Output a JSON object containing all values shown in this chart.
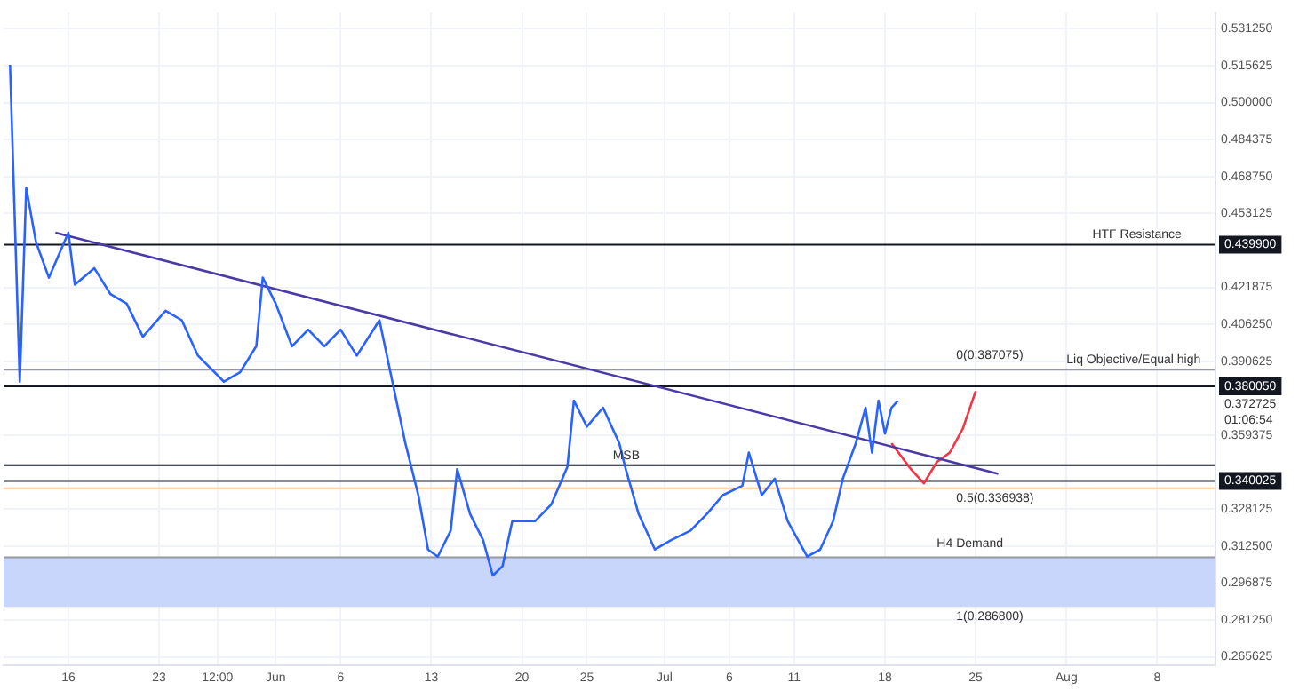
{
  "chart_data": {
    "type": "line",
    "grid": true,
    "legend": false,
    "xlim": [
      "--05-11",
      "--08-12T12:00"
    ],
    "xticks": [
      {
        "value": "--05-16",
        "label": "16"
      },
      {
        "value": "--05-23",
        "label": "23"
      },
      {
        "value": "--05-27T12:00",
        "label": "12:00"
      },
      {
        "value": "--06-01",
        "label": "Jun"
      },
      {
        "value": "--06-06",
        "label": "6"
      },
      {
        "value": "--06-13",
        "label": "13"
      },
      {
        "value": "--06-20",
        "label": "20"
      },
      {
        "value": "--06-25",
        "label": "25"
      },
      {
        "value": "--07-01",
        "label": "Jul"
      },
      {
        "value": "--07-06",
        "label": "6"
      },
      {
        "value": "--07-11",
        "label": "11"
      },
      {
        "value": "--07-18",
        "label": "18"
      },
      {
        "value": "--07-25",
        "label": "25"
      },
      {
        "value": "--08-01",
        "label": "Aug"
      },
      {
        "value": "--08-08",
        "label": "8"
      }
    ],
    "ylim": [
      0.262,
      0.538
    ],
    "yticks": [
      {
        "value": 0.265625,
        "label": "0.265625"
      },
      {
        "value": 0.28125,
        "label": "0.281250"
      },
      {
        "value": 0.296875,
        "label": "0.296875"
      },
      {
        "value": 0.3125,
        "label": "0.312500"
      },
      {
        "value": 0.328125,
        "label": "0.328125"
      },
      {
        "value": 0.359375,
        "label": "0.359375"
      },
      {
        "value": 0.390625,
        "label": "0.390625"
      },
      {
        "value": 0.40625,
        "label": "0.406250"
      },
      {
        "value": 0.421875,
        "label": "0.421875"
      },
      {
        "value": 0.453125,
        "label": "0.453125"
      },
      {
        "value": 0.46875,
        "label": "0.468750"
      },
      {
        "value": 0.484375,
        "label": "0.484375"
      },
      {
        "value": 0.5,
        "label": "0.500000"
      },
      {
        "value": 0.515625,
        "label": "0.515625"
      },
      {
        "value": 0.53125,
        "label": "0.531250"
      }
    ],
    "series": [
      {
        "color": "#2962ff",
        "x": [
          "--05-11T12:00",
          "--05-12T06:00",
          "--05-12T18:00",
          "--05-13T12:00",
          "--05-14T12:00",
          "--05-16",
          "--05-16T12:00",
          "--05-18",
          "--05-19T06:00",
          "--05-20T12:00",
          "--05-21T18:00",
          "--05-23T12:00",
          "--05-24T18:00",
          "--05-26",
          "--05-28",
          "--05-29T06:00",
          "--05-30T12:00",
          "--05-31",
          "--06-01",
          "--06-02T06:00",
          "--06-03T12:00",
          "--06-04T18:00",
          "--06-06",
          "--06-07T06:00",
          "--06-09",
          "--06-10",
          "--06-11",
          "--06-12",
          "--06-12T18:00",
          "--06-13T12:00",
          "--06-14T12:00",
          "--06-15",
          "--06-16",
          "--06-17",
          "--06-17T18:00",
          "--06-18T12:00",
          "--06-19T06:00",
          "--06-21",
          "--06-22T06:00",
          "--06-23T12:00",
          "--06-24",
          "--06-25",
          "--06-26T06:00",
          "--06-27T12:00",
          "--06-28",
          "--06-29",
          "--06-30T06:00",
          "--07-01T12:00",
          "--07-03",
          "--07-04T06:00",
          "--07-05T12:00",
          "--07-07",
          "--07-07T12:00",
          "--07-08T12:00",
          "--07-09T12:00",
          "--07-10T12:00",
          "--07-12",
          "--07-13",
          "--07-14",
          "--07-14T18:00",
          "--07-15T18:00",
          "--07-16T12:00",
          "--07-17",
          "--07-17T12:00",
          "--07-18",
          "--07-18T12:00",
          "--07-19"
        ],
        "values": [
          0.516,
          0.382,
          0.464,
          0.441,
          0.426,
          0.445,
          0.423,
          0.43,
          0.419,
          0.415,
          0.401,
          0.412,
          0.408,
          0.393,
          0.382,
          0.386,
          0.397,
          0.426,
          0.415,
          0.397,
          0.404,
          0.397,
          0.404,
          0.393,
          0.408,
          0.382,
          0.356,
          0.334,
          0.311,
          0.308,
          0.319,
          0.345,
          0.326,
          0.315,
          0.3,
          0.304,
          0.323,
          0.323,
          0.33,
          0.346,
          0.374,
          0.363,
          0.371,
          0.356,
          0.345,
          0.326,
          0.311,
          0.315,
          0.319,
          0.326,
          0.334,
          0.338,
          0.352,
          0.334,
          0.341,
          0.323,
          0.308,
          0.311,
          0.323,
          0.341,
          0.356,
          0.371,
          0.352,
          0.374,
          0.36,
          0.371,
          0.374
        ]
      },
      {
        "color": "#4a3aa8",
        "x": [
          "--05-15",
          "--07-26T18:00"
        ],
        "values": [
          0.445,
          0.343
        ]
      },
      {
        "color": "#f23645",
        "x": [
          "--07-18T12:00",
          "--07-20",
          "--07-21",
          "--07-22",
          "--07-23",
          "--07-24",
          "--07-25"
        ],
        "values": [
          0.356,
          0.345,
          0.339,
          0.348,
          0.352,
          0.362,
          0.378
        ]
      }
    ],
    "ref_lines": [
      {
        "axis": "y",
        "value": 0.4399,
        "label": "0.439900",
        "color": "#131722"
      },
      {
        "axis": "y",
        "value": 0.38005,
        "label": "0.380050",
        "color": "#131722"
      },
      {
        "axis": "y",
        "value": 0.340025,
        "label": "0.340025",
        "color": "#131722"
      },
      {
        "axis": "y",
        "value": 0.387075,
        "color": "#9598a1"
      },
      {
        "axis": "y",
        "value": 0.3467,
        "color": "#131722"
      },
      {
        "axis": "y",
        "value": 0.336938,
        "color": "#ffcc99"
      },
      {
        "axis": "y",
        "value": 0.3077,
        "color": "#9598a1"
      }
    ],
    "bands": [
      {
        "axis": "y",
        "from": 0.2868,
        "to": 0.3077,
        "color": "#c8d6fb"
      }
    ],
    "annotations": [
      {
        "text": "HTF Resistance",
        "x": "--08-03",
        "y": 0.4399
      },
      {
        "text": "Liq Objective/Equal high",
        "x": "--08-01",
        "y": 0.387075
      },
      {
        "text": "0(0.387075)",
        "x": "--07-23T12:00",
        "y": 0.389
      },
      {
        "text": "MSB",
        "x": "--06-27",
        "y": 0.3467
      },
      {
        "text": "0.5(0.336938)",
        "x": "--07-23T12:00",
        "y": 0.336938
      },
      {
        "text": "H4 Demand",
        "x": "--07-22",
        "y": 0.3095
      },
      {
        "text": "1(0.286800)",
        "x": "--07-23T12:00",
        "y": 0.2868
      },
      "0.372725",
      "01:06:54"
    ]
  }
}
